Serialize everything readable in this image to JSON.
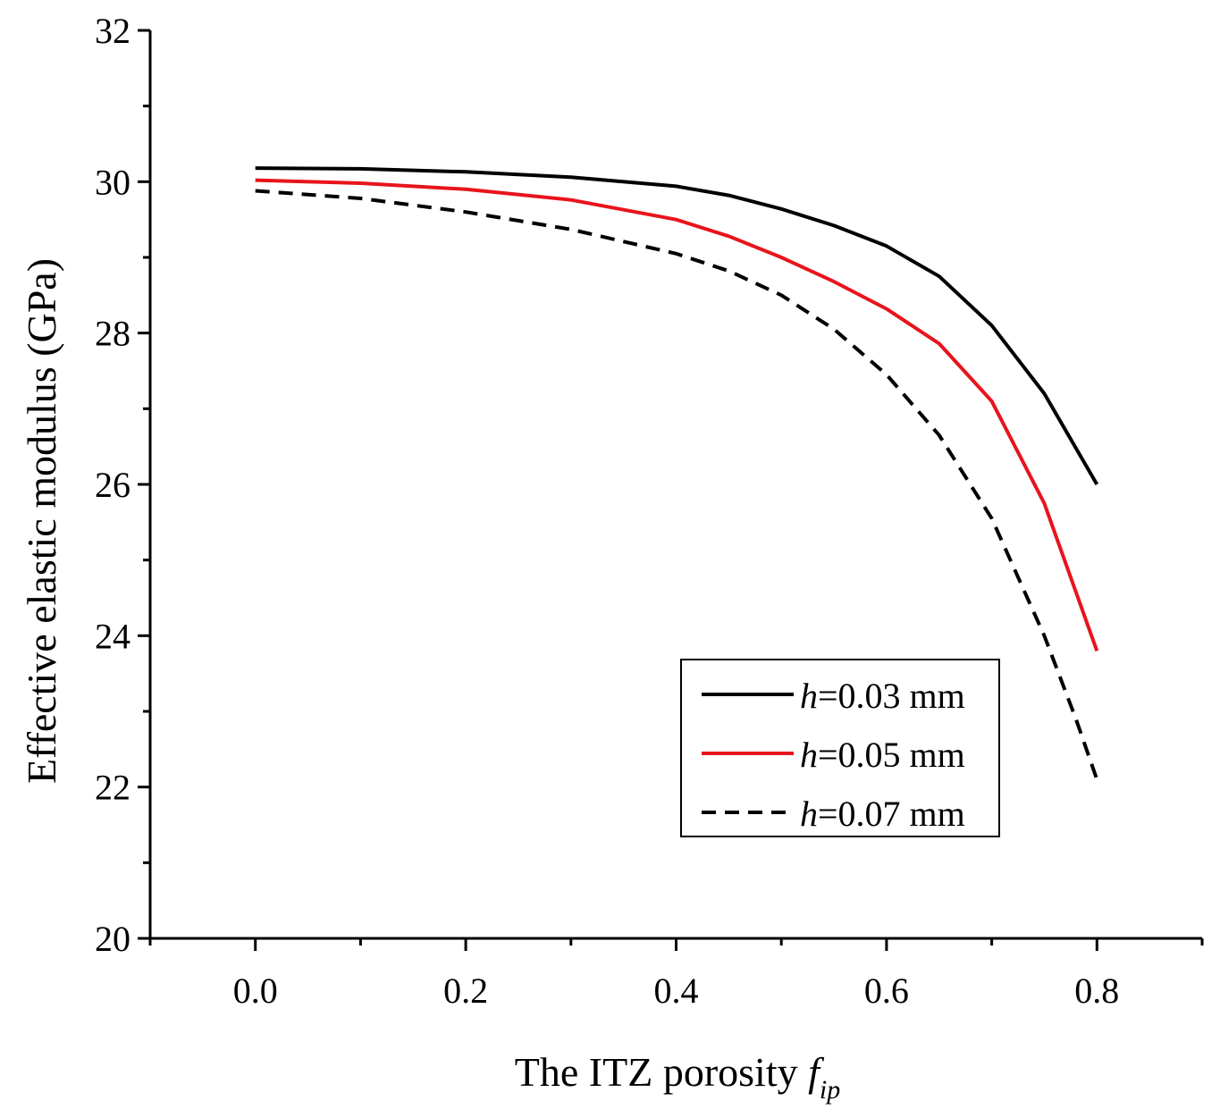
{
  "chart_data": {
    "type": "line",
    "title": "",
    "xlabel": "The ITZ porosity ",
    "xlabel_symbol": "f",
    "xlabel_subscript": "ip",
    "ylabel": "Effective elastic modulus (GPa)",
    "xlim": [
      -0.1,
      0.9
    ],
    "ylim": [
      20,
      32
    ],
    "x_ticks": [
      "0.0",
      "0.2",
      "0.4",
      "0.6",
      "0.8"
    ],
    "y_ticks": [
      "20",
      "22",
      "24",
      "26",
      "28",
      "30",
      "32"
    ],
    "grid": false,
    "legend_position": "bottom-right",
    "series": [
      {
        "name": "h=0.03 mm",
        "legend_symbol": "h",
        "legend_rest": "=0.03 mm",
        "color": "#000000",
        "style": "solid",
        "x": [
          0.0,
          0.1,
          0.2,
          0.3,
          0.4,
          0.45,
          0.5,
          0.55,
          0.6,
          0.65,
          0.7,
          0.75,
          0.8
        ],
        "y": [
          30.18,
          30.17,
          30.13,
          30.06,
          29.94,
          29.82,
          29.64,
          29.42,
          29.15,
          28.75,
          28.1,
          27.2,
          26.0
        ]
      },
      {
        "name": "h=0.05 mm",
        "legend_symbol": "h",
        "legend_rest": "=0.05 mm",
        "color": "#e8141c",
        "style": "solid",
        "x": [
          0.0,
          0.1,
          0.2,
          0.3,
          0.4,
          0.45,
          0.5,
          0.55,
          0.6,
          0.65,
          0.7,
          0.75,
          0.8
        ],
        "y": [
          30.02,
          29.98,
          29.9,
          29.76,
          29.5,
          29.28,
          29.0,
          28.68,
          28.32,
          27.86,
          27.1,
          25.75,
          23.8
        ]
      },
      {
        "name": "h=0.07 mm",
        "legend_symbol": "h",
        "legend_rest": "=0.07 mm",
        "color": "#000000",
        "style": "dashed",
        "x": [
          0.0,
          0.1,
          0.2,
          0.3,
          0.4,
          0.45,
          0.5,
          0.55,
          0.6,
          0.65,
          0.7,
          0.75,
          0.78,
          0.8
        ],
        "y": [
          29.88,
          29.78,
          29.6,
          29.37,
          29.05,
          28.82,
          28.5,
          28.05,
          27.45,
          26.65,
          25.55,
          24.0,
          22.9,
          22.1
        ]
      }
    ]
  }
}
